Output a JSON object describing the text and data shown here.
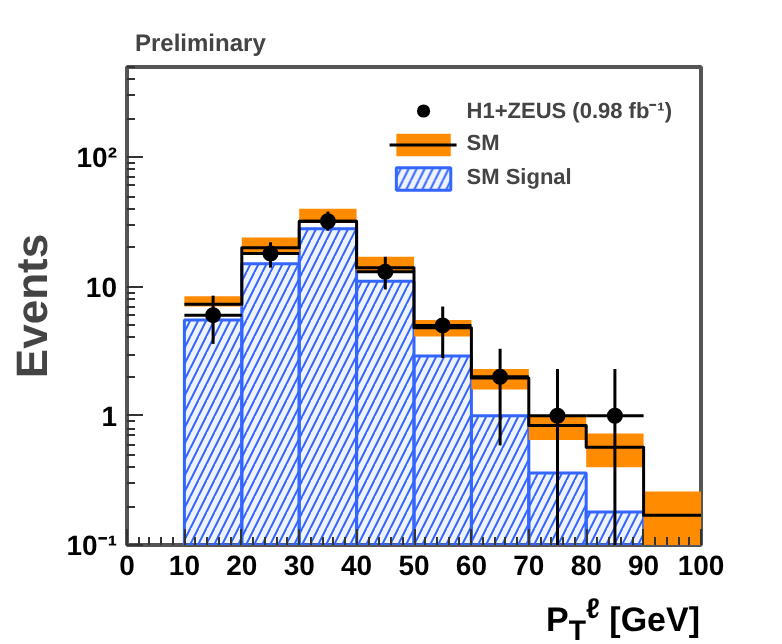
{
  "chart_data": {
    "type": "histogram",
    "title": "Preliminary",
    "xlabel": "P$_{T}$$^{ℓ}$ [GeV]",
    "ylabel": "Events",
    "bins": [
      0,
      10,
      20,
      30,
      40,
      50,
      60,
      70,
      80,
      90,
      100
    ],
    "series": [
      {
        "name": "SM Signal",
        "color": "#3366ff",
        "values": [
          null,
          5.5,
          15,
          28,
          11,
          2.9,
          1.0,
          0.36,
          0.18,
          null
        ]
      },
      {
        "name": "SM",
        "type": "step",
        "color": "#000000",
        "x": [
          10,
          20,
          30,
          40,
          50,
          60,
          70,
          80,
          90,
          100
        ],
        "values": [
          7.3,
          20,
          32,
          14,
          4.8,
          1.96,
          0.84,
          0.57,
          0.17,
          0.17
        ],
        "lower": [
          7.0,
          18,
          31,
          13,
          4.1,
          1.6,
          0.65,
          0.4,
          0.1,
          0.1
        ],
        "upper": [
          8.4,
          24,
          40,
          17,
          5.5,
          2.3,
          1.0,
          0.73,
          0.26,
          0.26
        ]
      },
      {
        "name": "H1+ZEUS (0.98 fb⁻¹)",
        "type": "scatter",
        "color": "#000000",
        "marker": "circle",
        "x": [
          15,
          25,
          35,
          45,
          55,
          65,
          75,
          85
        ],
        "values": [
          6,
          18,
          32,
          13,
          5,
          2,
          1,
          1
        ],
        "errors": [
          [
            3.6,
            8.5
          ],
          [
            14,
            22
          ],
          [
            27,
            38
          ],
          [
            9.5,
            17
          ],
          [
            2.8,
            7
          ],
          [
            0.59,
            3.3
          ],
          [
            0.1,
            2.3
          ],
          [
            0.1,
            2.3
          ]
        ],
        "xerrors": [
          5,
          5,
          5,
          5,
          5,
          5,
          5,
          5
        ]
      }
    ],
    "xlim": [
      0,
      100
    ],
    "xticks": [
      0,
      10,
      20,
      30,
      40,
      50,
      60,
      70,
      80,
      90,
      100
    ],
    "ylim": [
      0.1,
      500
    ],
    "yticks": [
      {
        "value": 0.1,
        "label": "10⁻¹"
      },
      1,
      10,
      {
        "value": 100,
        "label": "10²"
      }
    ],
    "log": "y",
    "grid": false,
    "legend": "top right"
  }
}
